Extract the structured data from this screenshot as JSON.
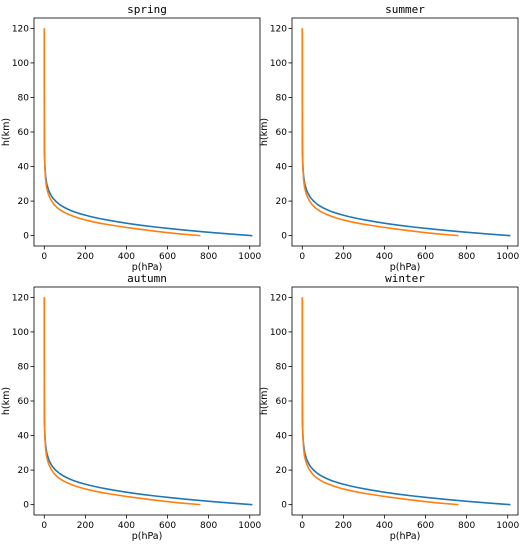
{
  "chart_data": [
    {
      "type": "line",
      "title": "spring",
      "xlabel": "p(hPa)",
      "ylabel": "h(km)",
      "xlim": [
        -50,
        1050
      ],
      "ylim": [
        -6,
        126
      ],
      "xticks": [
        0,
        200,
        400,
        600,
        800,
        1000
      ],
      "yticks": [
        0,
        20,
        40,
        60,
        80,
        100,
        120
      ],
      "grid": false,
      "series": [
        {
          "color": "#1f77b4",
          "x": [
            1013,
            900,
            795,
            701,
            616,
            540,
            472,
            411,
            357,
            308,
            265,
            227,
            194,
            165,
            141,
            121,
            103,
            88,
            75,
            55,
            40,
            30,
            22,
            12,
            6,
            3,
            1,
            0.5,
            0.2,
            0.1,
            0.05,
            0.02,
            0.01
          ],
          "y": [
            0,
            1,
            2,
            3,
            4,
            5,
            6,
            7,
            8,
            9,
            10,
            11,
            12,
            13,
            14,
            15,
            16,
            17,
            18,
            20,
            22,
            24,
            26,
            30,
            35,
            40,
            48,
            55,
            65,
            75,
            85,
            100,
            120
          ]
        },
        {
          "color": "#ff7f0e",
          "x": [
            760,
            660,
            580,
            510,
            445,
            385,
            330,
            280,
            238,
            202,
            172,
            146,
            124,
            105,
            89,
            76,
            64,
            48,
            36,
            27,
            20,
            11,
            6,
            3,
            1,
            0.5,
            0.2,
            0.1,
            0.05,
            0.02,
            0.01
          ],
          "y": [
            0,
            1,
            2,
            3,
            4,
            5,
            6,
            7,
            8,
            9,
            10,
            11,
            12,
            13,
            14,
            15,
            16,
            18,
            20,
            22,
            24,
            28,
            33,
            40,
            48,
            55,
            65,
            75,
            85,
            100,
            120
          ]
        }
      ]
    },
    {
      "type": "line",
      "title": "summer",
      "xlabel": "p(hPa)",
      "ylabel": "h(km)",
      "xlim": [
        -50,
        1050
      ],
      "ylim": [
        -6,
        126
      ],
      "xticks": [
        0,
        200,
        400,
        600,
        800,
        1000
      ],
      "yticks": [
        0,
        20,
        40,
        60,
        80,
        100,
        120
      ],
      "grid": false,
      "series": [
        {
          "color": "#1f77b4",
          "x": [
            1013,
            900,
            795,
            701,
            616,
            540,
            472,
            411,
            357,
            308,
            265,
            227,
            194,
            165,
            141,
            121,
            103,
            88,
            75,
            55,
            40,
            30,
            22,
            12,
            6,
            3,
            1,
            0.5,
            0.2,
            0.1,
            0.05,
            0.02,
            0.01
          ],
          "y": [
            0,
            1,
            2,
            3,
            4,
            5,
            6,
            7,
            8,
            9,
            10,
            11,
            12,
            13,
            14,
            15,
            16,
            17,
            18,
            20,
            22,
            24,
            26,
            30,
            35,
            40,
            48,
            55,
            65,
            75,
            85,
            100,
            120
          ]
        },
        {
          "color": "#ff7f0e",
          "x": [
            760,
            660,
            580,
            510,
            445,
            385,
            330,
            280,
            238,
            202,
            172,
            146,
            124,
            105,
            89,
            76,
            64,
            48,
            36,
            27,
            20,
            11,
            6,
            3,
            1,
            0.5,
            0.2,
            0.1,
            0.05,
            0.02,
            0.01
          ],
          "y": [
            0,
            1,
            2,
            3,
            4,
            5,
            6,
            7,
            8,
            9,
            10,
            11,
            12,
            13,
            14,
            15,
            16,
            18,
            20,
            22,
            24,
            28,
            33,
            40,
            48,
            55,
            65,
            75,
            85,
            100,
            120
          ]
        }
      ]
    },
    {
      "type": "line",
      "title": "autumn",
      "xlabel": "p(hPa)",
      "ylabel": "h(km)",
      "xlim": [
        -50,
        1050
      ],
      "ylim": [
        -6,
        126
      ],
      "xticks": [
        0,
        200,
        400,
        600,
        800,
        1000
      ],
      "yticks": [
        0,
        20,
        40,
        60,
        80,
        100,
        120
      ],
      "grid": false,
      "series": [
        {
          "color": "#1f77b4",
          "x": [
            1013,
            900,
            795,
            701,
            616,
            540,
            472,
            411,
            357,
            308,
            265,
            227,
            194,
            165,
            141,
            121,
            103,
            88,
            75,
            55,
            40,
            30,
            22,
            12,
            6,
            3,
            1,
            0.5,
            0.2,
            0.1,
            0.05,
            0.02,
            0.01
          ],
          "y": [
            0,
            1,
            2,
            3,
            4,
            5,
            6,
            7,
            8,
            9,
            10,
            11,
            12,
            13,
            14,
            15,
            16,
            17,
            18,
            20,
            22,
            24,
            26,
            30,
            35,
            40,
            48,
            55,
            65,
            75,
            85,
            100,
            120
          ]
        },
        {
          "color": "#ff7f0e",
          "x": [
            760,
            660,
            580,
            510,
            445,
            385,
            330,
            280,
            238,
            202,
            172,
            146,
            124,
            105,
            89,
            76,
            64,
            48,
            36,
            27,
            20,
            11,
            6,
            3,
            1,
            0.5,
            0.2,
            0.1,
            0.05,
            0.02,
            0.01
          ],
          "y": [
            0,
            1,
            2,
            3,
            4,
            5,
            6,
            7,
            8,
            9,
            10,
            11,
            12,
            13,
            14,
            15,
            16,
            18,
            20,
            22,
            24,
            28,
            33,
            40,
            48,
            55,
            65,
            75,
            85,
            100,
            120
          ]
        }
      ]
    },
    {
      "type": "line",
      "title": "winter",
      "xlabel": "p(hPa)",
      "ylabel": "h(km)",
      "xlim": [
        -50,
        1050
      ],
      "ylim": [
        -6,
        126
      ],
      "xticks": [
        0,
        200,
        400,
        600,
        800,
        1000
      ],
      "yticks": [
        0,
        20,
        40,
        60,
        80,
        100,
        120
      ],
      "grid": false,
      "series": [
        {
          "color": "#1f77b4",
          "x": [
            1013,
            900,
            795,
            701,
            616,
            540,
            472,
            411,
            357,
            308,
            265,
            227,
            194,
            165,
            141,
            121,
            103,
            88,
            75,
            55,
            40,
            30,
            22,
            12,
            6,
            3,
            1,
            0.5,
            0.2,
            0.1,
            0.05,
            0.02,
            0.01
          ],
          "y": [
            0,
            1,
            2,
            3,
            4,
            5,
            6,
            7,
            8,
            9,
            10,
            11,
            12,
            13,
            14,
            15,
            16,
            17,
            18,
            20,
            22,
            24,
            26,
            30,
            35,
            40,
            48,
            55,
            65,
            75,
            85,
            100,
            120
          ]
        },
        {
          "color": "#ff7f0e",
          "x": [
            760,
            660,
            580,
            510,
            445,
            385,
            330,
            280,
            238,
            202,
            172,
            146,
            124,
            105,
            89,
            76,
            64,
            48,
            36,
            27,
            20,
            11,
            6,
            3,
            1,
            0.5,
            0.2,
            0.1,
            0.05,
            0.02,
            0.01
          ],
          "y": [
            0,
            1,
            2,
            3,
            4,
            5,
            6,
            7,
            8,
            9,
            10,
            11,
            12,
            13,
            14,
            15,
            16,
            18,
            20,
            22,
            24,
            28,
            33,
            40,
            48,
            55,
            65,
            75,
            85,
            100,
            120
          ]
        }
      ]
    }
  ]
}
